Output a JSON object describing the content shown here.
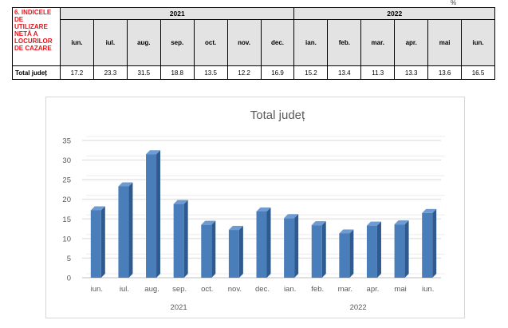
{
  "corner_mark": "%",
  "table": {
    "indicator_lines": [
      "6. INDICELE",
      "DE",
      "UTILIZARE",
      "NETĂ A",
      "LOCURILOR",
      "DE CAZARE"
    ],
    "years": [
      {
        "label": "2021",
        "span": 7
      },
      {
        "label": "2022",
        "span": 6
      }
    ],
    "months": [
      "iun.",
      "iul.",
      "aug.",
      "sep.",
      "oct.",
      "nov.",
      "dec.",
      "ian.",
      "feb.",
      "mar.",
      "apr.",
      "mai",
      "iun."
    ],
    "row_label": "Total județ",
    "values": [
      "17.2",
      "23.3",
      "31.5",
      "18.8",
      "13.5",
      "12.2",
      "16.9",
      "15.2",
      "13.4",
      "11.3",
      "13.3",
      "13.6",
      "16.5"
    ]
  },
  "chart_data": {
    "type": "bar",
    "title": "Total județ",
    "categories": [
      "iun.",
      "iul.",
      "aug.",
      "sep.",
      "oct.",
      "nov.",
      "dec.",
      "ian.",
      "feb.",
      "mar.",
      "apr.",
      "mai",
      "iun."
    ],
    "values": [
      17.2,
      23.3,
      31.5,
      18.8,
      13.5,
      12.2,
      16.9,
      15.2,
      13.4,
      11.3,
      13.3,
      13.6,
      16.5
    ],
    "groups": [
      {
        "label": "2021",
        "count": 7
      },
      {
        "label": "2022",
        "count": 6
      }
    ],
    "ylim": [
      0,
      35
    ],
    "yticks": [
      0,
      5,
      10,
      15,
      20,
      25,
      30,
      35
    ],
    "grid": true,
    "legend": "none",
    "bar_color": "#4a7ebb"
  }
}
